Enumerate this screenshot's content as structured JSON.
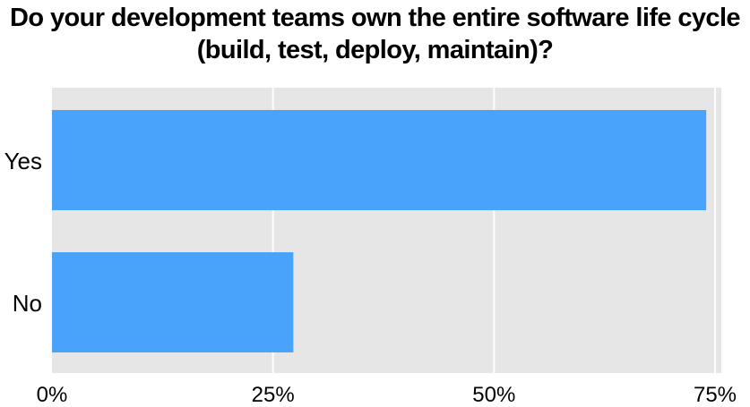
{
  "chart_data": {
    "type": "bar",
    "orientation": "horizontal",
    "title_lines": [
      "Do your development teams own the entire software life cycle",
      "(build, test, deploy, maintain)?"
    ],
    "categories": [
      "Yes",
      "No"
    ],
    "values": [
      74,
      27.3
    ],
    "value_unit": "%",
    "xlim": [
      0,
      80
    ],
    "xticks": [
      0,
      25,
      50,
      75
    ],
    "xtick_labels": [
      "0%",
      "25%",
      "50%",
      "75%"
    ],
    "grid": true,
    "legend": "none",
    "colors": {
      "bar": "#4aa3fa",
      "plot_background": "#e6e6e6",
      "gridline": "#ffffff"
    }
  }
}
